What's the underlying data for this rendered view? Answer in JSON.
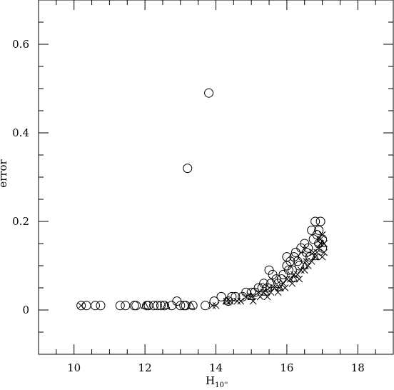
{
  "chart_data": {
    "type": "scatter",
    "title": "",
    "xlabel_main": "H",
    "xlabel_sub": "10''",
    "ylabel": "error",
    "xlim": [
      9,
      19
    ],
    "ylim": [
      -0.1,
      0.7
    ],
    "grid": false,
    "x_ticks_major": [
      10,
      12,
      14,
      16,
      18
    ],
    "x_tick_labels": [
      "10",
      "12",
      "14",
      "16",
      "18"
    ],
    "y_ticks_major": [
      0,
      0.2,
      0.4,
      0.6
    ],
    "y_tick_labels": [
      "0",
      "0.2",
      "0.4",
      "0.6"
    ],
    "series": [
      {
        "marker": "circle",
        "points": [
          [
            10.2,
            0.01
          ],
          [
            10.35,
            0.01
          ],
          [
            10.6,
            0.01
          ],
          [
            10.75,
            0.01
          ],
          [
            11.3,
            0.01
          ],
          [
            11.45,
            0.01
          ],
          [
            11.7,
            0.01
          ],
          [
            11.75,
            0.01
          ],
          [
            12.05,
            0.01
          ],
          [
            12.1,
            0.01
          ],
          [
            12.25,
            0.01
          ],
          [
            12.35,
            0.01
          ],
          [
            12.45,
            0.01
          ],
          [
            12.55,
            0.01
          ],
          [
            12.75,
            0.01
          ],
          [
            12.9,
            0.02
          ],
          [
            13.0,
            0.01
          ],
          [
            13.1,
            0.01
          ],
          [
            13.15,
            0.01
          ],
          [
            13.35,
            0.01
          ],
          [
            13.7,
            0.01
          ],
          [
            13.95,
            0.02
          ],
          [
            14.15,
            0.03
          ],
          [
            14.35,
            0.02
          ],
          [
            14.45,
            0.03
          ],
          [
            14.55,
            0.03
          ],
          [
            14.75,
            0.03
          ],
          [
            14.85,
            0.04
          ],
          [
            15.0,
            0.04
          ],
          [
            15.1,
            0.04
          ],
          [
            15.2,
            0.05
          ],
          [
            15.3,
            0.05
          ],
          [
            15.35,
            0.06
          ],
          [
            15.45,
            0.05
          ],
          [
            15.5,
            0.09
          ],
          [
            15.55,
            0.06
          ],
          [
            15.6,
            0.08
          ],
          [
            15.7,
            0.07
          ],
          [
            15.75,
            0.06
          ],
          [
            15.85,
            0.07
          ],
          [
            15.9,
            0.08
          ],
          [
            16.0,
            0.12
          ],
          [
            16.0,
            0.1
          ],
          [
            16.05,
            0.09
          ],
          [
            16.1,
            0.11
          ],
          [
            16.15,
            0.09
          ],
          [
            16.2,
            0.12
          ],
          [
            16.25,
            0.13
          ],
          [
            16.3,
            0.11
          ],
          [
            16.35,
            0.1
          ],
          [
            16.4,
            0.14
          ],
          [
            16.45,
            0.12
          ],
          [
            16.5,
            0.15
          ],
          [
            16.55,
            0.13
          ],
          [
            16.6,
            0.14
          ],
          [
            16.65,
            0.12
          ],
          [
            16.7,
            0.18
          ],
          [
            16.75,
            0.16
          ],
          [
            16.8,
            0.2
          ],
          [
            16.85,
            0.17
          ],
          [
            16.9,
            0.18
          ],
          [
            16.95,
            0.2
          ],
          [
            17.0,
            0.16
          ],
          [
            17.0,
            0.14
          ],
          [
            16.9,
            0.15
          ],
          [
            13.2,
            0.32
          ],
          [
            13.8,
            0.49
          ]
        ]
      },
      {
        "marker": "cross",
        "points": [
          [
            10.2,
            0.01
          ],
          [
            13.9,
            0.01
          ],
          [
            14.0,
            0.01
          ],
          [
            14.4,
            0.02
          ],
          [
            14.6,
            0.02
          ],
          [
            14.85,
            0.03
          ],
          [
            15.0,
            0.03
          ],
          [
            15.2,
            0.04
          ],
          [
            15.35,
            0.04
          ],
          [
            15.5,
            0.05
          ],
          [
            15.65,
            0.05
          ],
          [
            15.8,
            0.05
          ],
          [
            15.9,
            0.06
          ],
          [
            16.0,
            0.07
          ],
          [
            16.1,
            0.07
          ],
          [
            16.2,
            0.08
          ],
          [
            16.3,
            0.08
          ],
          [
            16.4,
            0.09
          ],
          [
            16.5,
            0.09
          ],
          [
            16.6,
            0.1
          ],
          [
            16.7,
            0.11
          ],
          [
            16.8,
            0.12
          ],
          [
            16.85,
            0.13
          ],
          [
            16.9,
            0.14
          ],
          [
            16.95,
            0.15
          ],
          [
            17.0,
            0.12
          ],
          [
            17.05,
            0.13
          ],
          [
            17.0,
            0.17
          ],
          [
            16.95,
            0.16
          ],
          [
            17.05,
            0.15
          ],
          [
            16.75,
            0.13
          ],
          [
            16.55,
            0.11
          ],
          [
            16.35,
            0.07
          ],
          [
            16.15,
            0.06
          ],
          [
            15.95,
            0.05
          ],
          [
            15.75,
            0.04
          ],
          [
            15.55,
            0.04
          ],
          [
            15.45,
            0.03
          ],
          [
            15.25,
            0.03
          ],
          [
            15.05,
            0.02
          ],
          [
            14.7,
            0.02
          ],
          [
            14.3,
            0.02
          ]
        ]
      },
      {
        "marker": "triangle",
        "points": [
          [
            12.0,
            0.01
          ],
          [
            12.6,
            0.01
          ],
          [
            13.3,
            0.01
          ],
          [
            14.3,
            0.02
          ],
          [
            15.0,
            0.03
          ],
          [
            15.4,
            0.04
          ],
          [
            15.8,
            0.05
          ],
          [
            16.2,
            0.07
          ],
          [
            16.5,
            0.1
          ],
          [
            16.8,
            0.12
          ],
          [
            17.0,
            0.15
          ]
        ]
      }
    ]
  }
}
